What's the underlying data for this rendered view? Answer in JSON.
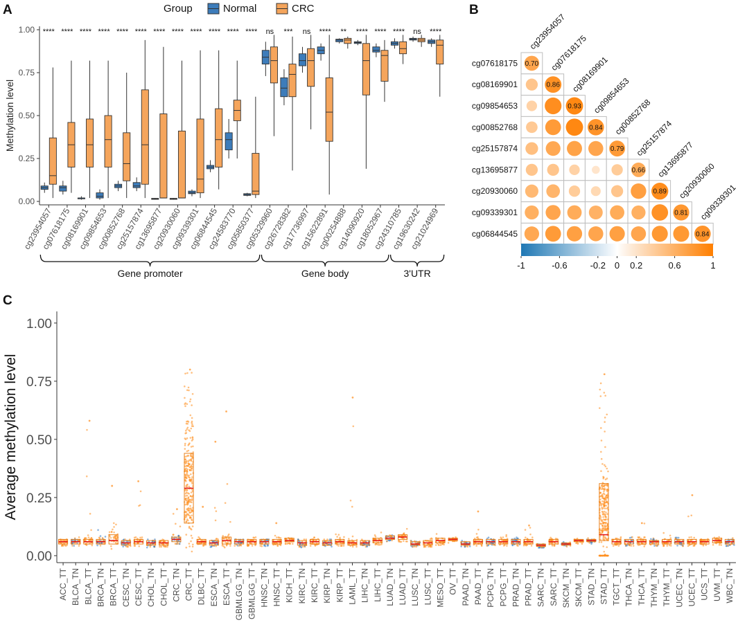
{
  "panel_labels": {
    "a": "A",
    "b": "B",
    "c": "C"
  },
  "colors": {
    "normal": "#3d7cba",
    "crc": "#f5a55c",
    "tumor_point": "#ff8c1a",
    "normal_point": "#2f79c2",
    "median_c": "#e31a1c"
  },
  "chart_data": [
    {
      "type": "boxplot",
      "panel": "A",
      "title": "",
      "ylabel": "Methylation level",
      "ylim": [
        -0.02,
        1.02
      ],
      "yticks": [
        "0.00",
        "0.25",
        "0.50",
        "0.75",
        "1.00"
      ],
      "legend": {
        "title": "Group",
        "entries": [
          "Normal",
          "CRC"
        ],
        "position": "top"
      },
      "categories": [
        "cg23954057",
        "cg07618175",
        "cg08169901",
        "cg09854653",
        "cg00852768",
        "cg25157874",
        "cg13695877",
        "cg20930060",
        "cg09339301",
        "cg06844545",
        "cg24583770",
        "cg05850377",
        "cg05329960",
        "cg26728382",
        "cg17736997",
        "cg15622891",
        "cg00254888",
        "cg14090920",
        "cg18052967",
        "cg24310785",
        "cg19630242",
        "cg21024969"
      ],
      "significance": [
        "****",
        "****",
        "****",
        "****",
        "****",
        "****",
        "****",
        "****",
        "****",
        "****",
        "****",
        "****",
        "ns",
        "***",
        "ns",
        "****",
        "**",
        "****",
        "****",
        "****",
        "ns",
        "****"
      ],
      "regions": [
        {
          "label": "Gene promoter",
          "from": 0,
          "to": 11
        },
        {
          "label": "Gene body",
          "from": 12,
          "to": 18
        },
        {
          "label": "3'UTR",
          "from": 19,
          "to": 21
        }
      ],
      "series": [
        {
          "name": "Normal",
          "boxes": [
            [
              0.05,
              0.07,
              0.08,
              0.09,
              0.11
            ],
            [
              0.04,
              0.06,
              0.08,
              0.09,
              0.12
            ],
            [
              0.01,
              0.015,
              0.02,
              0.02,
              0.03
            ],
            [
              0.01,
              0.02,
              0.03,
              0.05,
              0.07
            ],
            [
              0.06,
              0.08,
              0.09,
              0.1,
              0.12
            ],
            [
              0.06,
              0.08,
              0.09,
              0.11,
              0.14
            ],
            [
              0.01,
              0.012,
              0.015,
              0.018,
              0.02
            ],
            [
              0.01,
              0.012,
              0.015,
              0.018,
              0.02
            ],
            [
              0.03,
              0.045,
              0.05,
              0.06,
              0.07
            ],
            [
              0.17,
              0.19,
              0.2,
              0.21,
              0.24
            ],
            [
              0.25,
              0.3,
              0.36,
              0.4,
              0.48
            ],
            [
              0.03,
              0.035,
              0.04,
              0.045,
              0.05
            ],
            [
              0.73,
              0.8,
              0.84,
              0.88,
              0.93
            ],
            [
              0.56,
              0.61,
              0.66,
              0.72,
              0.77
            ],
            [
              0.75,
              0.79,
              0.82,
              0.86,
              0.9
            ],
            [
              0.82,
              0.86,
              0.88,
              0.9,
              0.92
            ],
            [
              0.92,
              0.93,
              0.94,
              0.945,
              0.95
            ],
            [
              0.91,
              0.92,
              0.925,
              0.93,
              0.94
            ],
            [
              0.84,
              0.87,
              0.88,
              0.9,
              0.92
            ],
            [
              0.89,
              0.91,
              0.92,
              0.93,
              0.95
            ],
            [
              0.93,
              0.94,
              0.945,
              0.95,
              0.96
            ],
            [
              0.9,
              0.92,
              0.93,
              0.94,
              0.95
            ]
          ]
        },
        {
          "name": "CRC",
          "boxes": [
            [
              0.02,
              0.1,
              0.15,
              0.37,
              0.78
            ],
            [
              0.05,
              0.2,
              0.33,
              0.46,
              0.82
            ],
            [
              0.02,
              0.2,
              0.33,
              0.48,
              0.82
            ],
            [
              0.02,
              0.2,
              0.36,
              0.5,
              0.82
            ],
            [
              0.02,
              0.12,
              0.22,
              0.4,
              0.75
            ],
            [
              0.02,
              0.1,
              0.33,
              0.65,
              0.94
            ],
            [
              0.02,
              0.02,
              0.02,
              0.51,
              0.9
            ],
            [
              0.02,
              0.02,
              0.02,
              0.41,
              0.82
            ],
            [
              0.02,
              0.05,
              0.13,
              0.48,
              0.88
            ],
            [
              0.07,
              0.2,
              0.36,
              0.54,
              0.88
            ],
            [
              0.25,
              0.47,
              0.53,
              0.59,
              0.82
            ],
            [
              0.02,
              0.04,
              0.06,
              0.28,
              0.61
            ],
            [
              0.38,
              0.69,
              0.82,
              0.9,
              0.97
            ],
            [
              0.18,
              0.61,
              0.74,
              0.8,
              0.96
            ],
            [
              0.42,
              0.67,
              0.82,
              0.89,
              0.97
            ],
            [
              0.04,
              0.35,
              0.52,
              0.72,
              0.97
            ],
            [
              0.89,
              0.92,
              0.94,
              0.95,
              0.96
            ],
            [
              0.19,
              0.62,
              0.82,
              0.92,
              0.97
            ],
            [
              0.58,
              0.7,
              0.85,
              0.88,
              0.94
            ],
            [
              0.8,
              0.86,
              0.89,
              0.93,
              0.97
            ],
            [
              0.9,
              0.93,
              0.94,
              0.95,
              0.97
            ],
            [
              0.61,
              0.8,
              0.91,
              0.94,
              0.97
            ]
          ]
        }
      ]
    },
    {
      "type": "heatmap",
      "panel": "B",
      "title": "",
      "column_labels": [
        "cg23954057",
        "cg07618175",
        "cg08169901",
        "cg09854653",
        "cg00852768",
        "cg25157874",
        "cg13695877",
        "cg20930060",
        "cg09339301"
      ],
      "row_labels": [
        "cg07618175",
        "cg08169901",
        "cg09854653",
        "cg00852768",
        "cg25157874",
        "cg13695877",
        "cg20930060",
        "cg09339301",
        "cg06844545"
      ],
      "diagonal_values": [
        "0.70",
        "0.86",
        "0.93",
        "0.84",
        "0.79",
        "0.66",
        "0.89",
        "0.81",
        "0.84"
      ],
      "matrix": [
        [
          0.7
        ],
        [
          0.45,
          0.86
        ],
        [
          0.35,
          0.88,
          0.93
        ],
        [
          0.42,
          0.78,
          0.93,
          0.84
        ],
        [
          0.5,
          0.68,
          0.72,
          0.7,
          0.79
        ],
        [
          0.45,
          0.45,
          0.35,
          0.2,
          0.4,
          0.66
        ],
        [
          0.55,
          0.58,
          0.4,
          0.3,
          0.45,
          0.75,
          0.89
        ],
        [
          0.62,
          0.7,
          0.65,
          0.6,
          0.65,
          0.62,
          0.85,
          0.81
        ],
        [
          0.68,
          0.78,
          0.74,
          0.7,
          0.74,
          0.7,
          0.8,
          0.8,
          0.84
        ]
      ],
      "colorbar": {
        "ticks": [
          "-1",
          "-0.6",
          "-0.2",
          "0",
          "0.2",
          "0.6",
          "1"
        ],
        "range": [
          -1,
          1
        ]
      }
    },
    {
      "type": "boxplot",
      "panel": "C",
      "title": "",
      "ylabel": "Average methylation level",
      "ylim": [
        -0.03,
        1.05
      ],
      "yticks": [
        "0.00",
        "0.25",
        "0.50",
        "0.75",
        "1.00"
      ],
      "categories": [
        "ACC_TT",
        "BLCA_TN",
        "BLCA_TT",
        "BRCA_TN",
        "BRCA_TT",
        "CESC_TN",
        "CESC_TT",
        "CHOL_TN",
        "CHOL_TT",
        "CRC_TN",
        "CRC_TT",
        "DLBC_TT",
        "ESCA_TN",
        "ESCA_TT",
        "GBMLGG_TN",
        "GBMLGG_TT",
        "HNSC_TN",
        "HNSC_TT",
        "KICH_TT",
        "KIRC_TN",
        "KIRC_TT",
        "KIRP_TN",
        "KIRP_TT",
        "LAML_TT",
        "LIHC_TN",
        "LIHC_TT",
        "LUAD_TN",
        "LUAD_TT",
        "LUSC_TN",
        "LUSC_TT",
        "MESO_TT",
        "OV_TT",
        "PAAD_TN",
        "PAAD_TT",
        "PCPG_TN",
        "PCPG_TT",
        "PRAD_TN",
        "PRAD_TT",
        "SARC_TN",
        "SARC_TT",
        "SKCM_TN",
        "SKCM_TT",
        "STAD_TN",
        "STAD_TT",
        "TGCT_TT",
        "THCA_TN",
        "THCA_TT",
        "THYM_TN",
        "THYM_TT",
        "UCEC_TN",
        "UCEC_TT",
        "UCS_TT",
        "UVM_TT",
        "WBC_TN"
      ],
      "medians": [
        0.06,
        0.06,
        0.06,
        0.06,
        0.065,
        0.055,
        0.06,
        0.055,
        0.055,
        0.07,
        0.29,
        0.06,
        0.055,
        0.065,
        0.06,
        0.06,
        0.06,
        0.06,
        0.065,
        0.055,
        0.06,
        0.055,
        0.06,
        0.055,
        0.055,
        0.065,
        0.075,
        0.08,
        0.05,
        0.055,
        0.065,
        0.07,
        0.05,
        0.06,
        0.06,
        0.06,
        0.06,
        0.06,
        0.045,
        0.06,
        0.05,
        0.065,
        0.065,
        0.09,
        0.06,
        0.06,
        0.06,
        0.06,
        0.06,
        0.06,
        0.06,
        0.06,
        0.065,
        0.06
      ],
      "q1": [
        0.05,
        0.05,
        0.05,
        0.05,
        0.05,
        0.045,
        0.05,
        0.045,
        0.045,
        0.06,
        0.14,
        0.05,
        0.045,
        0.05,
        0.05,
        0.05,
        0.05,
        0.05,
        0.06,
        0.045,
        0.05,
        0.045,
        0.05,
        0.045,
        0.045,
        0.055,
        0.07,
        0.07,
        0.045,
        0.045,
        0.055,
        0.065,
        0.045,
        0.05,
        0.05,
        0.05,
        0.05,
        0.05,
        0.04,
        0.05,
        0.045,
        0.06,
        0.06,
        0.065,
        0.05,
        0.05,
        0.05,
        0.05,
        0.05,
        0.05,
        0.05,
        0.05,
        0.055,
        0.05
      ],
      "q3": [
        0.07,
        0.07,
        0.07,
        0.07,
        0.09,
        0.065,
        0.07,
        0.065,
        0.065,
        0.08,
        0.44,
        0.07,
        0.065,
        0.08,
        0.07,
        0.07,
        0.07,
        0.07,
        0.075,
        0.065,
        0.07,
        0.065,
        0.07,
        0.065,
        0.065,
        0.075,
        0.085,
        0.09,
        0.06,
        0.065,
        0.075,
        0.075,
        0.06,
        0.07,
        0.07,
        0.07,
        0.07,
        0.07,
        0.05,
        0.07,
        0.055,
        0.07,
        0.07,
        0.31,
        0.07,
        0.07,
        0.07,
        0.065,
        0.07,
        0.07,
        0.07,
        0.07,
        0.075,
        0.07
      ],
      "max_points": [
        0.07,
        0.08,
        0.58,
        0.12,
        0.3,
        0.07,
        0.32,
        0.07,
        0.08,
        0.2,
        0.8,
        0.21,
        0.49,
        0.62,
        0.07,
        0.08,
        0.07,
        0.14,
        0.08,
        0.07,
        0.08,
        0.07,
        0.11,
        0.68,
        0.07,
        0.1,
        0.09,
        0.12,
        0.07,
        0.08,
        0.1,
        0.08,
        0.07,
        0.19,
        0.08,
        0.1,
        0.08,
        0.13,
        0.05,
        0.1,
        0.06,
        0.09,
        0.08,
        0.78,
        0.1,
        0.08,
        0.14,
        0.08,
        0.1,
        0.09,
        0.26,
        0.08,
        0.1,
        0.08
      ]
    }
  ]
}
